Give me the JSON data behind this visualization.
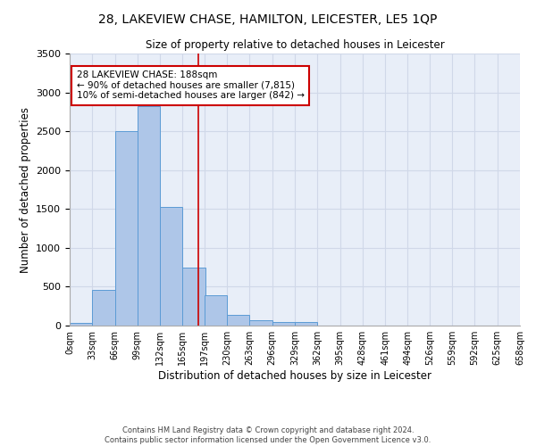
{
  "title": "28, LAKEVIEW CHASE, HAMILTON, LEICESTER, LE5 1QP",
  "subtitle": "Size of property relative to detached houses in Leicester",
  "xlabel": "Distribution of detached houses by size in Leicester",
  "ylabel": "Number of detached properties",
  "bin_labels": [
    "0sqm",
    "33sqm",
    "66sqm",
    "99sqm",
    "132sqm",
    "165sqm",
    "197sqm",
    "230sqm",
    "263sqm",
    "296sqm",
    "329sqm",
    "362sqm",
    "395sqm",
    "428sqm",
    "461sqm",
    "494sqm",
    "526sqm",
    "559sqm",
    "592sqm",
    "625sqm",
    "658sqm"
  ],
  "bin_edges": [
    0,
    33,
    66,
    99,
    132,
    165,
    197,
    230,
    263,
    296,
    329,
    362,
    395,
    428,
    461,
    494,
    526,
    559,
    592,
    625,
    658
  ],
  "bar_values": [
    30,
    460,
    2500,
    2820,
    1530,
    750,
    390,
    140,
    70,
    50,
    50,
    0,
    0,
    0,
    0,
    0,
    0,
    0,
    0,
    0
  ],
  "bar_color": "#aec6e8",
  "bar_edge_color": "#5b9bd5",
  "property_size": 188,
  "vline_color": "#cc0000",
  "annotation_text": "28 LAKEVIEW CHASE: 188sqm\n← 90% of detached houses are smaller (7,815)\n10% of semi-detached houses are larger (842) →",
  "annotation_box_color": "#ffffff",
  "annotation_box_edge": "#cc0000",
  "ylim": [
    0,
    3500
  ],
  "yticks": [
    0,
    500,
    1000,
    1500,
    2000,
    2500,
    3000,
    3500
  ],
  "footnote1": "Contains HM Land Registry data © Crown copyright and database right 2024.",
  "footnote2": "Contains public sector information licensed under the Open Government Licence v3.0.",
  "grid_color": "#d0d8e8",
  "bg_color": "#e8eef8"
}
